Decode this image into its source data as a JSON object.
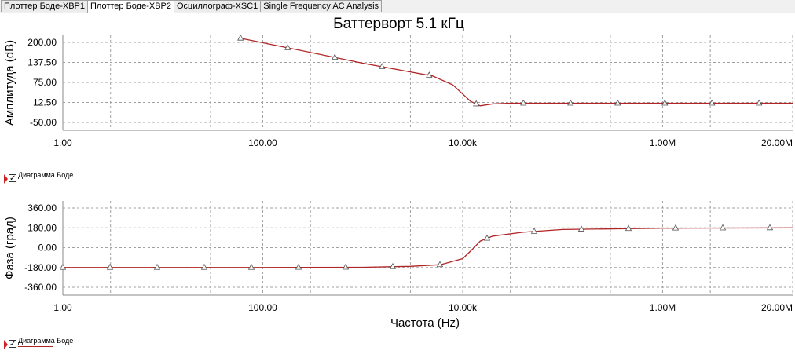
{
  "tabs": [
    {
      "label": "Плоттер Боде-XBP1",
      "active": false
    },
    {
      "label": "Плоттер Боде-XBP2",
      "active": true
    },
    {
      "label": "Осциллограф-XSC1",
      "active": false
    },
    {
      "label": "Single Frequency AC Analysis",
      "active": false
    }
  ],
  "title": "Баттерворт 5.1 кГц",
  "legend": {
    "label": "Диаграмма Боде",
    "checkmark": "✓"
  },
  "colors": {
    "trace": "#b02525",
    "grid": "#a0a0a0",
    "legend_arrow": "#cc2222"
  },
  "chart_data": [
    {
      "type": "line",
      "title": "Баттерворт 5.1 кГц",
      "xscale": "log",
      "xlim": [
        1,
        20000000
      ],
      "xticks": [
        1,
        100,
        10000,
        1000000,
        20000000
      ],
      "xtick_labels": [
        "1.00",
        "100.00",
        "10.00k",
        "1.00M",
        "20.00M"
      ],
      "xlabel": "",
      "ylabel": "Амплитуда (dB)",
      "ylim": [
        -50,
        200
      ],
      "yticks": [
        200,
        137.5,
        75,
        12.5,
        -50
      ],
      "ytick_labels": [
        "200.00",
        "137.50",
        "75.00",
        "12.50",
        "-50.00"
      ],
      "grid": true,
      "legend": "below-left",
      "series": [
        {
          "name": "Диаграмма Боде",
          "x": [
            60,
            200,
            1000,
            5000,
            8000,
            12000,
            15000,
            20000,
            30000,
            100000,
            1000000,
            20000000
          ],
          "y": [
            213,
            180,
            135,
            95,
            67,
            16,
            2,
            8,
            10,
            10,
            10,
            10
          ]
        }
      ]
    },
    {
      "type": "line",
      "title": "",
      "xscale": "log",
      "xlim": [
        1,
        20000000
      ],
      "xticks": [
        1,
        100,
        10000,
        1000000,
        20000000
      ],
      "xtick_labels": [
        "1.00",
        "100.00",
        "10.00k",
        "1.00M",
        "20.00M"
      ],
      "xlabel": "Частота (Hz)",
      "ylabel": "Фаза (град)",
      "ylim": [
        -360,
        360
      ],
      "yticks": [
        360,
        180,
        0,
        -180,
        -360
      ],
      "ytick_labels": [
        "360.00",
        "180.00",
        "0.00",
        "-180.00",
        "-360.00"
      ],
      "grid": true,
      "legend": "below-left",
      "series": [
        {
          "name": "Диаграмма Боде",
          "x": [
            1,
            10,
            100,
            1000,
            3000,
            6000,
            10000,
            13000,
            15000,
            20000,
            40000,
            100000,
            1000000,
            20000000
          ],
          "y": [
            -180,
            -180,
            -180,
            -178,
            -170,
            -155,
            -100,
            0,
            60,
            105,
            140,
            165,
            177,
            180
          ]
        }
      ]
    }
  ]
}
